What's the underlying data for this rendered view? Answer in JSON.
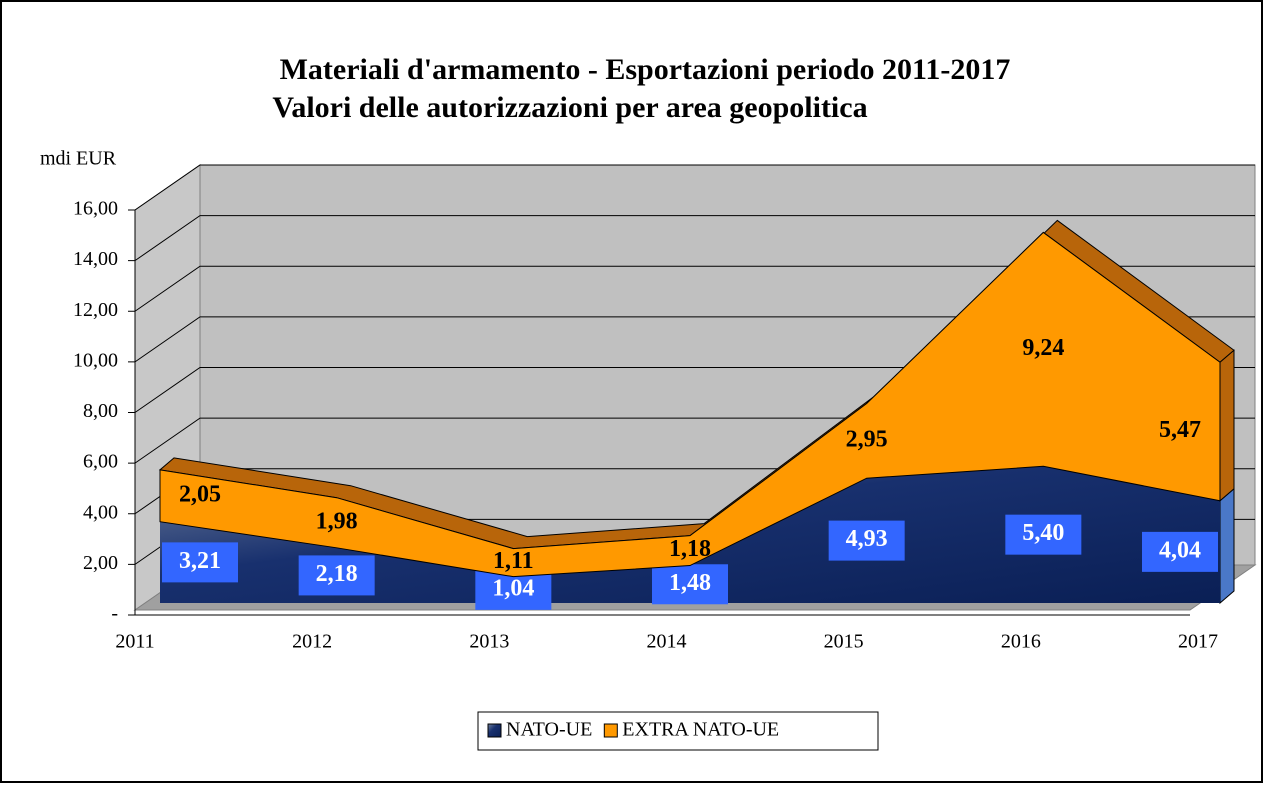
{
  "chart_data": {
    "type": "area",
    "stacked": true,
    "title": "Materiali d'armamento - Esportazioni periodo 2011-2017",
    "subtitle": "Valori delle autorizzazioni per area geopolitica",
    "y_label": "mdi EUR",
    "categories": [
      "2011",
      "2012",
      "2013",
      "2014",
      "2015",
      "2016",
      "2017"
    ],
    "series": [
      {
        "name": "NATO-UE",
        "color": "#1f3f8a",
        "values": [
          3.21,
          2.18,
          1.04,
          1.48,
          4.93,
          5.4,
          4.04
        ],
        "value_labels": [
          "3,21",
          "2,18",
          "1,04",
          "1,48",
          "4,93",
          "5,40",
          "4,04"
        ]
      },
      {
        "name": "EXTRA NATO-UE",
        "color": "#ff9900",
        "values": [
          2.05,
          1.98,
          1.11,
          1.18,
          2.95,
          9.24,
          5.47
        ],
        "value_labels": [
          "2,05",
          "1,98",
          "1,11",
          "1,18",
          "2,95",
          "9,24",
          "5,47"
        ]
      }
    ],
    "ylim": [
      0,
      16
    ],
    "yticks": [
      {
        "value": 0,
        "label": "-"
      },
      {
        "value": 2,
        "label": "2,00"
      },
      {
        "value": 4,
        "label": "4,00"
      },
      {
        "value": 6,
        "label": "6,00"
      },
      {
        "value": 8,
        "label": "8,00"
      },
      {
        "value": 10,
        "label": "10,00"
      },
      {
        "value": 12,
        "label": "12,00"
      },
      {
        "value": 14,
        "label": "14,00"
      },
      {
        "value": 16,
        "label": "16,00"
      }
    ],
    "grid": true,
    "legend": "bottom"
  }
}
